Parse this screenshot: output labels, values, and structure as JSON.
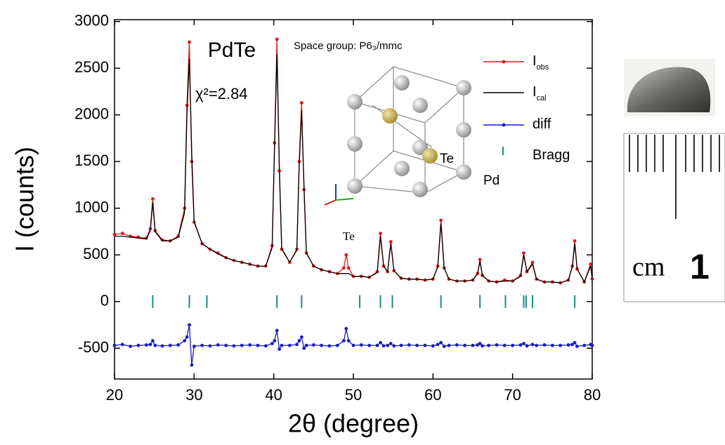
{
  "chart_data": {
    "type": "xrd",
    "xlabel": "2θ (degree)",
    "ylabel": "I (counts)",
    "xlim": [
      20,
      80
    ],
    "xticks": [
      20,
      30,
      40,
      50,
      60,
      70,
      80
    ],
    "ylim": [
      -830,
      3020
    ],
    "yticks": [
      -500,
      0,
      500,
      1000,
      1500,
      2000,
      2500,
      3000
    ],
    "grid": false,
    "legend": "upper right",
    "x": [
      20,
      21,
      22,
      23,
      24,
      24.5,
      24.8,
      25.1,
      26,
      27,
      28,
      28.8,
      29.1,
      29.4,
      29.7,
      30,
      31,
      32,
      33,
      34,
      35,
      36,
      37,
      38,
      39,
      39.8,
      40.1,
      40.4,
      40.7,
      41,
      42,
      42.9,
      43.2,
      43.5,
      43.8,
      44.1,
      45,
      46,
      47,
      48,
      48.8,
      49.1,
      49.4,
      50,
      51,
      52,
      53,
      53.4,
      53.8,
      54.3,
      54.7,
      55.1,
      56,
      57,
      58,
      59,
      60,
      60.6,
      61,
      61.4,
      62,
      63,
      64,
      65,
      65.6,
      65.9,
      66.2,
      67,
      68,
      69,
      70,
      71,
      71.4,
      71.8,
      72.5,
      73,
      74,
      75,
      76,
      77,
      77.5,
      77.8,
      78.1,
      79,
      79.8,
      80
    ],
    "series": [
      {
        "name": "I",
        "name_subscript": "obs",
        "color": "#e0191f",
        "style": "line+points",
        "values": [
          720,
          730,
          700,
          690,
          680,
          780,
          1100,
          760,
          660,
          650,
          700,
          1000,
          2100,
          2780,
          1500,
          850,
          620,
          560,
          520,
          470,
          440,
          420,
          400,
          380,
          380,
          600,
          1700,
          2810,
          1400,
          560,
          420,
          560,
          1500,
          2130,
          1200,
          520,
          380,
          340,
          320,
          300,
          360,
          500,
          360,
          270,
          270,
          260,
          320,
          730,
          380,
          320,
          640,
          330,
          250,
          240,
          240,
          230,
          240,
          380,
          870,
          360,
          240,
          220,
          220,
          230,
          300,
          450,
          280,
          220,
          210,
          230,
          220,
          280,
          520,
          320,
          420,
          240,
          210,
          210,
          200,
          230,
          380,
          650,
          350,
          210,
          400,
          240
        ]
      },
      {
        "name": "I",
        "name_subscript": "cal",
        "color": "#000000",
        "style": "line",
        "values": [
          700,
          700,
          690,
          680,
          670,
          760,
          1060,
          750,
          650,
          650,
          690,
          950,
          2000,
          2600,
          1600,
          860,
          620,
          560,
          510,
          470,
          440,
          420,
          400,
          380,
          380,
          580,
          1650,
          2650,
          1450,
          570,
          420,
          550,
          1450,
          2050,
          1250,
          520,
          380,
          340,
          320,
          300,
          300,
          300,
          300,
          270,
          270,
          260,
          310,
          700,
          380,
          320,
          620,
          330,
          250,
          240,
          240,
          230,
          240,
          370,
          840,
          360,
          240,
          220,
          220,
          230,
          300,
          430,
          280,
          220,
          210,
          220,
          220,
          270,
          500,
          320,
          400,
          240,
          210,
          210,
          200,
          230,
          370,
          620,
          350,
          210,
          380,
          240
        ]
      },
      {
        "name": "diff",
        "color": "#1a1acc",
        "style": "line+points",
        "values": [
          -470,
          -460,
          -480,
          -470,
          -465,
          -460,
          -420,
          -470,
          -475,
          -470,
          -465,
          -420,
          -380,
          -250,
          -680,
          -480,
          -470,
          -475,
          -465,
          -470,
          -475,
          -470,
          -465,
          -470,
          -475,
          -450,
          -420,
          -310,
          -510,
          -470,
          -470,
          -460,
          -420,
          -380,
          -500,
          -470,
          -465,
          -470,
          -475,
          -470,
          -420,
          -290,
          -420,
          -470,
          -465,
          -470,
          -470,
          -440,
          -475,
          -470,
          -450,
          -475,
          -470,
          -465,
          -470,
          -470,
          -475,
          -460,
          -440,
          -480,
          -470,
          -465,
          -470,
          -470,
          -465,
          -450,
          -475,
          -470,
          -465,
          -470,
          -470,
          -465,
          -450,
          -475,
          -460,
          -470,
          -465,
          -470,
          -470,
          -465,
          -460,
          -440,
          -480,
          -470,
          -460,
          -470
        ]
      },
      {
        "name": "Bragg",
        "color": "#1a8a80",
        "style": "ticks",
        "x": [
          24.8,
          29.4,
          31.6,
          40.4,
          43.5,
          50.8,
          53.4,
          54.9,
          61.0,
          65.9,
          69.1,
          71.4,
          71.7,
          72.5,
          77.8
        ],
        "values": [
          0,
          0,
          0,
          0,
          0,
          0,
          0,
          0,
          0,
          0,
          0,
          0,
          0,
          0,
          0
        ]
      }
    ],
    "annotations": [
      "PdTe",
      "χ²=2.84",
      "Space group: P6₃/mmc",
      "Te"
    ],
    "inset_labels": [
      "Te",
      "Pd"
    ],
    "photo_scale": [
      "cm",
      "1"
    ]
  }
}
